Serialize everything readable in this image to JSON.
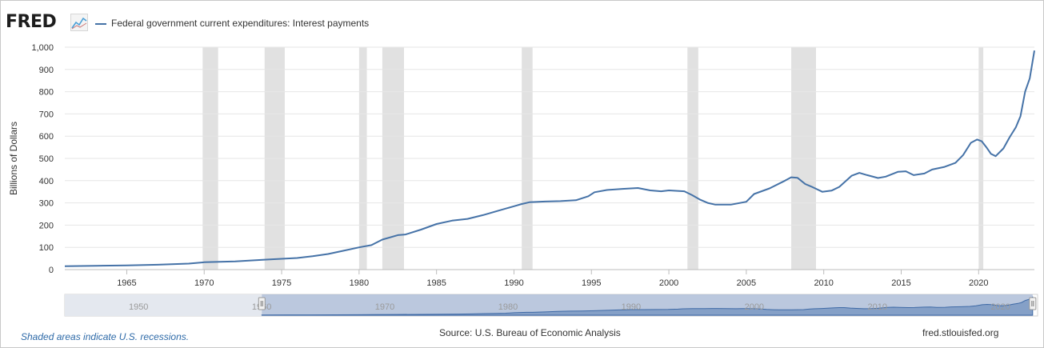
{
  "header": {
    "logo_text": "FRED",
    "logo_icon": "line-chart-icon",
    "series_legend": "Federal government current expenditures: Interest payments",
    "series_color": "#4572a7"
  },
  "chart_data": {
    "type": "line",
    "title": "Federal government current expenditures: Interest payments",
    "ylabel": "Billions of Dollars",
    "xlabel": "",
    "xlim": [
      1961,
      2023.6
    ],
    "ylim": [
      0,
      1000
    ],
    "yticks": [
      0,
      100,
      200,
      300,
      400,
      500,
      600,
      700,
      800,
      900,
      1000
    ],
    "ytick_labels": [
      "0",
      "100",
      "200",
      "300",
      "400",
      "500",
      "600",
      "700",
      "800",
      "900",
      "1,000"
    ],
    "xticks": [
      1965,
      1970,
      1975,
      1980,
      1985,
      1990,
      1995,
      2000,
      2005,
      2010,
      2015,
      2020
    ],
    "grid": true,
    "recessions": [
      [
        1969.9,
        1970.9
      ],
      [
        1973.9,
        1975.2
      ],
      [
        1980.0,
        1980.5
      ],
      [
        1981.5,
        1982.9
      ],
      [
        1990.5,
        1991.2
      ],
      [
        2001.2,
        2001.9
      ],
      [
        2007.9,
        2009.5
      ],
      [
        2020.0,
        2020.3
      ]
    ],
    "series": [
      {
        "name": "Federal government current expenditures: Interest payments",
        "color": "#4572a7",
        "points": [
          [
            1961,
            15
          ],
          [
            1963,
            17
          ],
          [
            1965,
            19
          ],
          [
            1967,
            22
          ],
          [
            1969,
            27
          ],
          [
            1970,
            33
          ],
          [
            1972,
            37
          ],
          [
            1974,
            45
          ],
          [
            1976,
            52
          ],
          [
            1977,
            60
          ],
          [
            1978,
            70
          ],
          [
            1979,
            85
          ],
          [
            1980,
            100
          ],
          [
            1980.8,
            110
          ],
          [
            1981.5,
            135
          ],
          [
            1982.5,
            155
          ],
          [
            1983,
            158
          ],
          [
            1984,
            180
          ],
          [
            1985,
            205
          ],
          [
            1986,
            220
          ],
          [
            1987,
            228
          ],
          [
            1988,
            245
          ],
          [
            1989,
            265
          ],
          [
            1990,
            285
          ],
          [
            1990.5,
            295
          ],
          [
            1991,
            303
          ],
          [
            1992,
            306
          ],
          [
            1993,
            308
          ],
          [
            1994,
            312
          ],
          [
            1994.8,
            330
          ],
          [
            1995.2,
            348
          ],
          [
            1996,
            358
          ],
          [
            1997,
            363
          ],
          [
            1998,
            367
          ],
          [
            1998.8,
            356
          ],
          [
            1999.5,
            352
          ],
          [
            2000,
            356
          ],
          [
            2001,
            352
          ],
          [
            2001.5,
            335
          ],
          [
            2002,
            315
          ],
          [
            2002.5,
            300
          ],
          [
            2003,
            292
          ],
          [
            2004,
            292
          ],
          [
            2005,
            305
          ],
          [
            2005.5,
            340
          ],
          [
            2006.5,
            365
          ],
          [
            2007.5,
            400
          ],
          [
            2007.9,
            415
          ],
          [
            2008.3,
            413
          ],
          [
            2008.8,
            385
          ],
          [
            2009.3,
            370
          ],
          [
            2009.9,
            350
          ],
          [
            2010.5,
            355
          ],
          [
            2011,
            372
          ],
          [
            2011.8,
            422
          ],
          [
            2012.3,
            435
          ],
          [
            2012.8,
            425
          ],
          [
            2013.5,
            412
          ],
          [
            2014,
            418
          ],
          [
            2014.8,
            440
          ],
          [
            2015.3,
            442
          ],
          [
            2015.8,
            425
          ],
          [
            2016.5,
            432
          ],
          [
            2017,
            450
          ],
          [
            2017.8,
            462
          ],
          [
            2018.5,
            480
          ],
          [
            2019,
            515
          ],
          [
            2019.5,
            570
          ],
          [
            2019.9,
            585
          ],
          [
            2020.2,
            577
          ],
          [
            2020.5,
            550
          ],
          [
            2020.8,
            520
          ],
          [
            2021.1,
            510
          ],
          [
            2021.6,
            545
          ],
          [
            2022,
            595
          ],
          [
            2022.4,
            640
          ],
          [
            2022.7,
            690
          ],
          [
            2023,
            800
          ],
          [
            2023.3,
            860
          ],
          [
            2023.6,
            985
          ]
        ]
      }
    ]
  },
  "navigator": {
    "year_labels": [
      "1950",
      "1960",
      "1970",
      "1980",
      "1990",
      "2000",
      "2010",
      "2020"
    ],
    "year_values": [
      1950,
      1960,
      1970,
      1980,
      1990,
      2000,
      2010,
      2020
    ],
    "range_start": 1945,
    "range_end": 2024,
    "selected_start": 1961,
    "selected_end": 2023.6
  },
  "footer": {
    "recession_note": "Shaded areas indicate U.S. recessions.",
    "source": "Source: U.S. Bureau of Economic Analysis",
    "site": "fred.stlouisfed.org"
  }
}
